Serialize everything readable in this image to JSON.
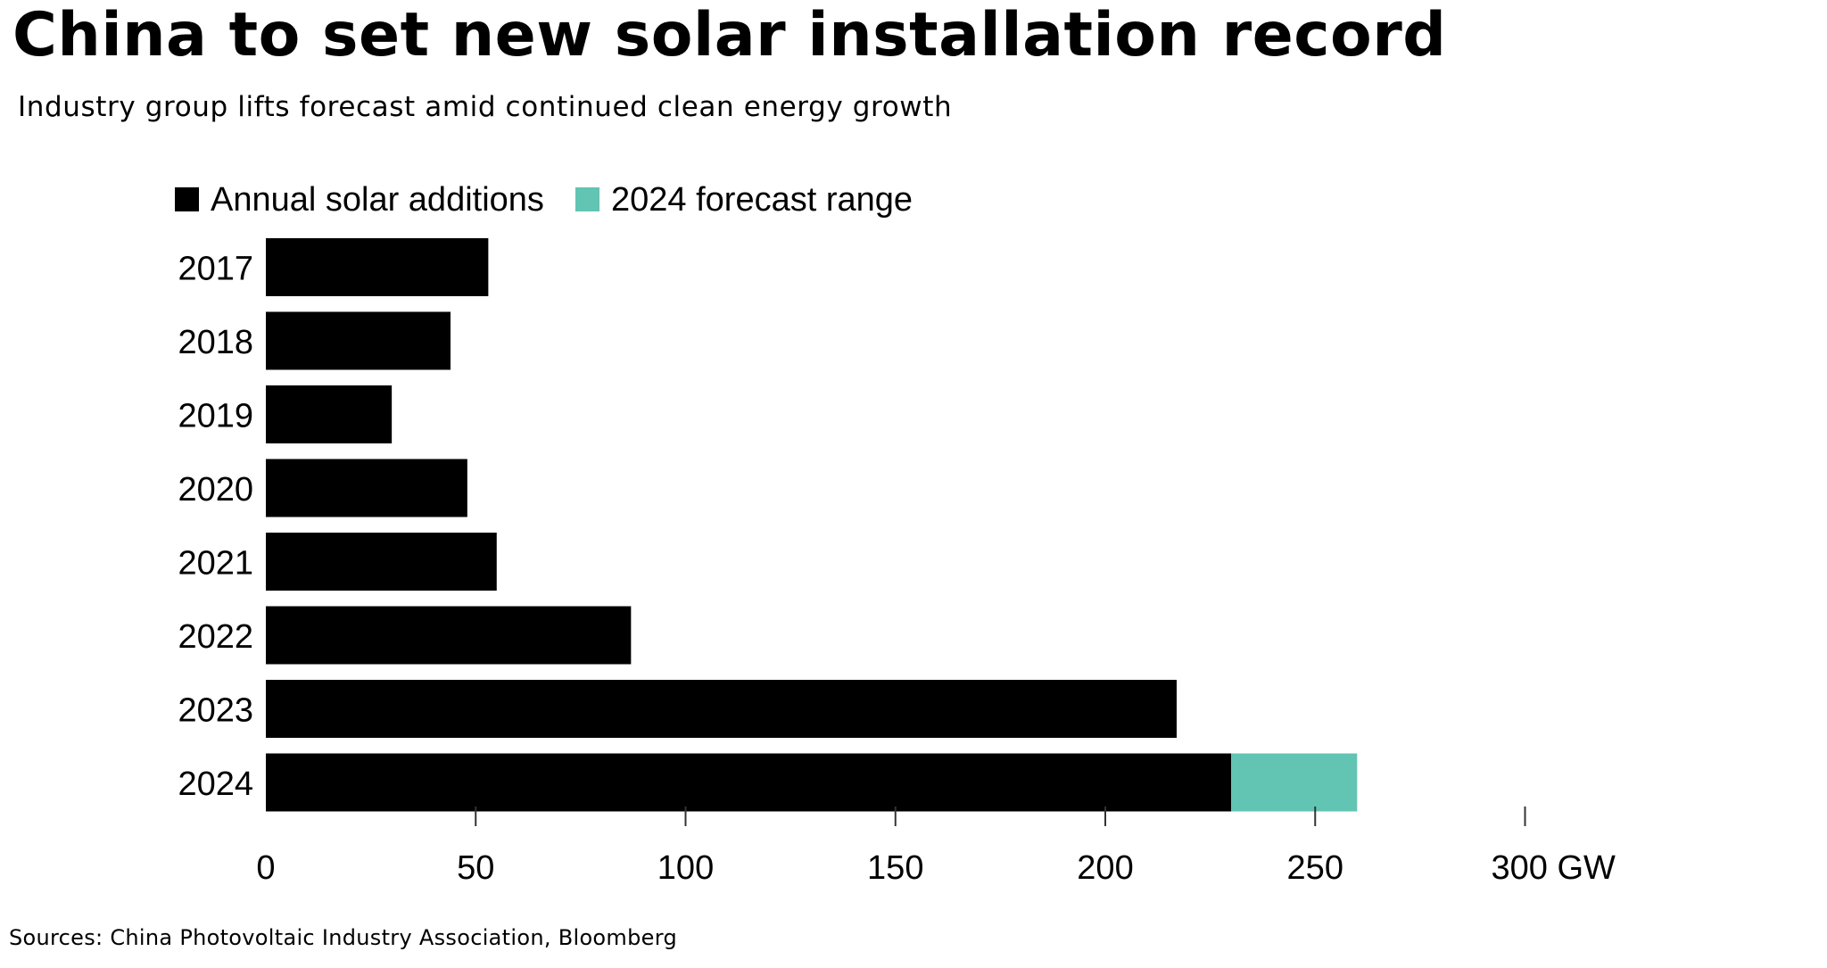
{
  "title": "China to set new solar installation record",
  "subtitle": "Industry group lifts forecast amid continued clean energy growth",
  "source": "Sources:  China Photovoltaic Industry Association, Bloomberg",
  "colors": {
    "actual": "#000000",
    "forecast": "#62c4b2",
    "text": "#000000",
    "background": "#ffffff"
  },
  "chart_data": {
    "type": "bar",
    "orientation": "horizontal",
    "stacked": true,
    "categories": [
      "2017",
      "2018",
      "2019",
      "2020",
      "2021",
      "2022",
      "2023",
      "2024"
    ],
    "series": [
      {
        "name": "Annual solar additions",
        "color": "#000000",
        "values": [
          53,
          44,
          30,
          48,
          55,
          87,
          217,
          230
        ]
      },
      {
        "name": "2024 forecast range",
        "color": "#62c4b2",
        "values": [
          0,
          0,
          0,
          0,
          0,
          0,
          0,
          30
        ]
      }
    ],
    "x_ticks": [
      0,
      50,
      100,
      150,
      200,
      250,
      300
    ],
    "x_tick_labels": [
      "0",
      "50",
      "100",
      "150",
      "200",
      "250",
      "300 GW"
    ],
    "xlim": [
      0,
      300
    ],
    "grid": false,
    "legend_position": "top-left"
  }
}
